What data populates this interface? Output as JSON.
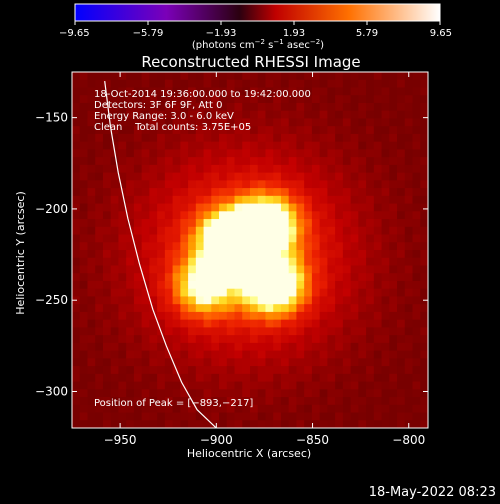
{
  "chart_data": {
    "type": "heatmap",
    "title": "Reconstructed RHESSI Image",
    "xlabel": "Heliocentric X (arcsec)",
    "ylabel": "Heliocentric Y (arcsec)",
    "xlim": [
      -975,
      -790
    ],
    "ylim": [
      -320,
      -125
    ],
    "x_ticks": [
      -950,
      -900,
      -850,
      -800
    ],
    "y_ticks": [
      -150,
      -200,
      -250,
      -300
    ],
    "x_tick_labels": [
      "−950",
      "−900",
      "−850",
      "−800"
    ],
    "y_tick_labels": [
      "−150",
      "−200",
      "−250",
      "−300"
    ],
    "colorbar": {
      "range": [
        -9.65,
        9.65
      ],
      "ticks": [
        -9.65,
        -5.79,
        -1.93,
        1.93,
        5.79,
        9.65
      ],
      "tick_labels": [
        "−9.65",
        "−5.79",
        "−1.93",
        "1.93",
        "5.79",
        "9.65"
      ],
      "units_html": "(photons cm<tspan baseline-shift=\"super\" font-size=\"7\">−2</tspan> s<tspan baseline-shift=\"super\" font-size=\"7\">−1</tspan> asec<tspan baseline-shift=\"super\" font-size=\"7\">−2</tspan>)"
    },
    "annotations": [
      "18-Oct-2014 19:36:00.000 to 19:42:00.000",
      "Detectors: 3F 6F 9F, Att 0",
      "Energy Range: 3.0 - 6.0 keV",
      "Clean    Total counts: 3.75E+05"
    ],
    "peak_label": "Position of Peak = [−893,−217]",
    "peak": [
      -893,
      -217
    ],
    "sources": [
      {
        "x": -893,
        "y": -217,
        "amplitude": 9.65
      },
      {
        "x": -870,
        "y": -242,
        "amplitude": 9.3
      },
      {
        "x": -873,
        "y": -208,
        "amplitude": 8.4
      },
      {
        "x": -907,
        "y": -243,
        "amplitude": 6.6
      }
    ],
    "limb_curve": {
      "x": [
        -958,
        -955,
        -951,
        -946,
        -940,
        -933,
        -926,
        -918,
        -910,
        -900
      ],
      "y": [
        -130,
        -155,
        -180,
        -205,
        -230,
        -255,
        -275,
        -295,
        -310,
        -320
      ]
    },
    "footer_date": "18-May-2022 08:23",
    "colors": {
      "background": "#000000",
      "axis": "#ffffff",
      "colormap_stops": [
        "#0000ff",
        "#7000ff",
        "#000000",
        "#ff0000",
        "#ff8a00",
        "#ffffff"
      ]
    }
  }
}
